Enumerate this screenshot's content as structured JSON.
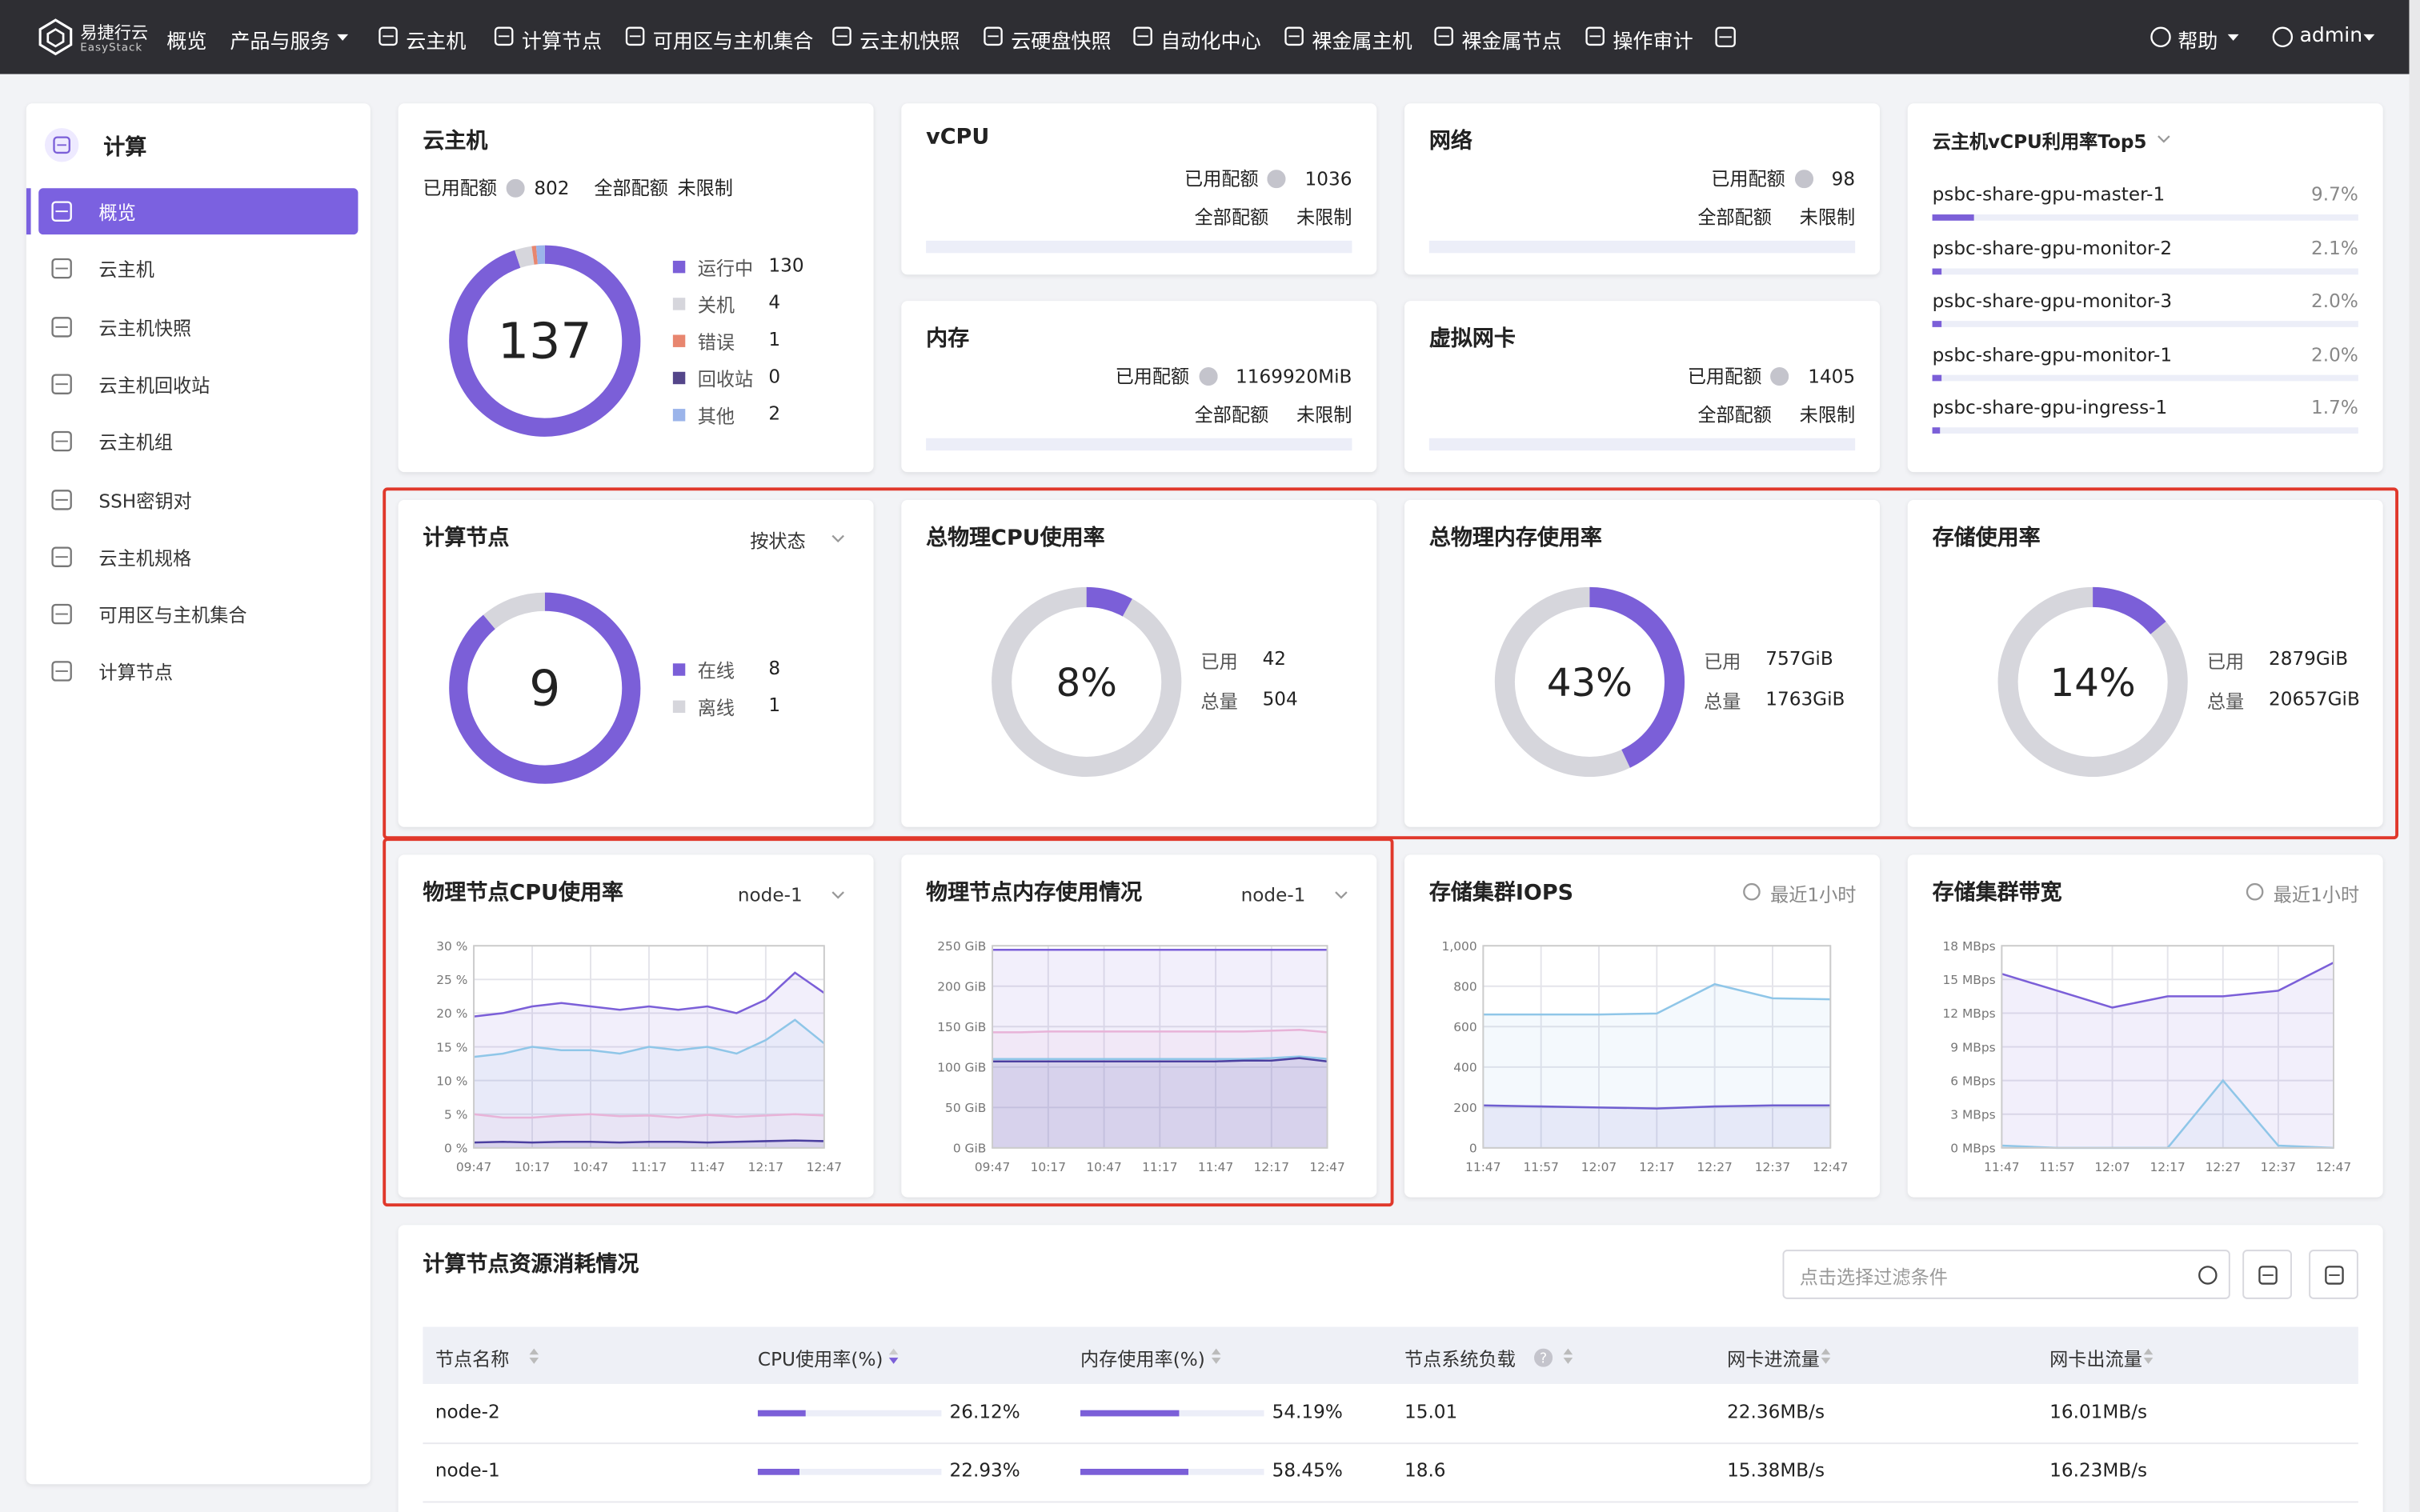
{
  "nav": {
    "brand": "易捷行云",
    "brand_sub": "EasyStack",
    "items": [
      "概览",
      "产品与服务",
      "云主机",
      "计算节点",
      "可用区与主机集合",
      "云主机快照",
      "云硬盘快照",
      "自动化中心",
      "裸金属主机",
      "裸金属节点",
      "操作审计"
    ],
    "help": "帮助",
    "user": "admin"
  },
  "sidebar": {
    "title": "计算",
    "items": [
      "概览",
      "云主机",
      "云主机快照",
      "云主机回收站",
      "云主机组",
      "SSH密钥对",
      "云主机规格",
      "可用区与主机集合",
      "计算节点"
    ]
  },
  "vm": {
    "title": "云主机",
    "used_label": "已用配额",
    "used": 802,
    "total_label": "全部配额",
    "total": "未限制",
    "center": 137,
    "legend": [
      {
        "name": "运行中",
        "value": 130,
        "color": "#7b5fd8"
      },
      {
        "name": "关机",
        "value": 4,
        "color": "#d6d6dc"
      },
      {
        "name": "错误",
        "value": 1,
        "color": "#e8866f"
      },
      {
        "name": "回收站",
        "value": 0,
        "color": "#54468a"
      },
      {
        "name": "其他",
        "value": 2,
        "color": "#9bb4ea"
      }
    ]
  },
  "quotas": [
    {
      "title": "vCPU",
      "used_label": "已用配额",
      "used": "1036",
      "total_label": "全部配额",
      "total": "未限制"
    },
    {
      "title": "网络",
      "used_label": "已用配额",
      "used": "98",
      "total_label": "全部配额",
      "total": "未限制"
    },
    {
      "title": "内存",
      "used_label": "已用配额",
      "used": "1169920MiB",
      "total_label": "全部配额",
      "total": "未限制"
    },
    {
      "title": "虚拟网卡",
      "used_label": "已用配额",
      "used": "1405",
      "total_label": "全部配额",
      "total": "未限制"
    }
  ],
  "top5": {
    "title": "云主机vCPU利用率Top5",
    "items": [
      {
        "name": "psbc-share-gpu-master-1",
        "value": 9.7,
        "label": "9.7%"
      },
      {
        "name": "psbc-share-gpu-monitor-2",
        "value": 2.1,
        "label": "2.1%"
      },
      {
        "name": "psbc-share-gpu-monitor-3",
        "value": 2.0,
        "label": "2.0%"
      },
      {
        "name": "psbc-share-gpu-monitor-1",
        "value": 2.0,
        "label": "2.0%"
      },
      {
        "name": "psbc-share-gpu-ingress-1",
        "value": 1.7,
        "label": "1.7%"
      }
    ]
  },
  "nodes": {
    "title": "计算节点",
    "select": "按状态",
    "center": 9,
    "legend": [
      {
        "name": "在线",
        "value": 8,
        "color": "#7b5fd8"
      },
      {
        "name": "离线",
        "value": 1,
        "color": "#d6d6dc"
      }
    ]
  },
  "usage": [
    {
      "title": "总物理CPU使用率",
      "percent": 8,
      "percent_label": "8%",
      "used_label": "已用",
      "used": "42",
      "total_label": "总量",
      "total": "504"
    },
    {
      "title": "总物理内存使用率",
      "percent": 43,
      "percent_label": "43%",
      "used_label": "已用",
      "used": "757GiB",
      "total_label": "总量",
      "total": "1763GiB"
    },
    {
      "title": "存储使用率",
      "percent": 14,
      "percent_label": "14%",
      "used_label": "已用",
      "used": "2879GiB",
      "total_label": "总量",
      "total": "20657GiB"
    }
  ],
  "charts": [
    {
      "type": "line",
      "title": "物理节点CPU使用率",
      "select": "node-1",
      "categories": [
        "09:47",
        null,
        "10:17",
        null,
        "10:47",
        null,
        "11:17",
        null,
        "11:47",
        null,
        "12:17",
        null,
        "12:47"
      ],
      "ylim": [
        0,
        30
      ],
      "yticks": [
        {
          "value": 0,
          "label": "0 %"
        },
        {
          "value": 5,
          "label": "5 %"
        },
        {
          "value": 10,
          "label": "10 %"
        },
        {
          "value": 15,
          "label": "15 %"
        },
        {
          "value": 20,
          "label": "20 %"
        },
        {
          "value": 25,
          "label": "25 %"
        },
        {
          "value": 30,
          "label": "30 %"
        }
      ],
      "series": [
        {
          "color": "#7b5fd8",
          "values": [
            19.5,
            20,
            21,
            21.5,
            21,
            20.5,
            21,
            20.5,
            21,
            20,
            22,
            26,
            23
          ]
        },
        {
          "color": "#8fc6e8",
          "values": [
            13.5,
            14,
            15,
            14.5,
            14.5,
            14,
            15,
            14.5,
            15,
            14,
            16,
            19,
            15.5
          ]
        },
        {
          "color": "#e8b3d8",
          "values": [
            5,
            4.5,
            4.5,
            4.8,
            5,
            4.7,
            4.8,
            4.5,
            4.9,
            4.6,
            4.8,
            5,
            4.8
          ]
        },
        {
          "color": "#4b3fa0",
          "values": [
            0.8,
            0.9,
            0.8,
            0.9,
            0.9,
            0.8,
            0.9,
            0.9,
            0.8,
            0.9,
            1,
            1.1,
            1
          ]
        }
      ]
    },
    {
      "type": "line",
      "title": "物理节点内存使用情况",
      "select": "node-1",
      "categories": [
        "09:47",
        null,
        "10:17",
        null,
        "10:47",
        null,
        "11:17",
        null,
        "11:47",
        null,
        "12:17",
        null,
        "12:47"
      ],
      "ylim": [
        0,
        250
      ],
      "yticks": [
        {
          "value": 0,
          "label": "0 GiB"
        },
        {
          "value": 50,
          "label": "50 GiB"
        },
        {
          "value": 100,
          "label": "100 GiB"
        },
        {
          "value": 150,
          "label": "150 GiB"
        },
        {
          "value": 200,
          "label": "200 GiB"
        },
        {
          "value": 250,
          "label": "250 GiB"
        }
      ],
      "series": [
        {
          "color": "#7b5fd8",
          "values": [
            245,
            245,
            245,
            245,
            245,
            245,
            245,
            245,
            245,
            245,
            245,
            245,
            245
          ]
        },
        {
          "color": "#e8b3d8",
          "values": [
            143,
            143,
            144,
            144,
            144,
            144,
            144,
            144,
            144,
            144,
            145,
            146,
            143
          ]
        },
        {
          "color": "#8fc6e8",
          "values": [
            110,
            110,
            110,
            110,
            110,
            110,
            110,
            110,
            110,
            110,
            111,
            113,
            110
          ]
        },
        {
          "color": "#4b3fa0",
          "values": [
            107,
            107,
            107,
            107,
            107,
            107,
            107,
            107,
            107,
            108,
            108,
            111,
            107
          ]
        }
      ]
    },
    {
      "type": "line",
      "title": "存储集群IOPS",
      "range": "最近1小时",
      "categories": [
        "11:47",
        "11:57",
        "12:07",
        "12:17",
        "12:27",
        "12:37",
        "12:47"
      ],
      "ylim": [
        0,
        1000
      ],
      "yticks": [
        0,
        200,
        400,
        600,
        800,
        {
          "value": 1000,
          "label": "1,000"
        }
      ],
      "series": [
        {
          "color": "#8fc6e8",
          "values": [
            660,
            660,
            660,
            665,
            810,
            740,
            735
          ]
        },
        {
          "color": "#6f5fd0",
          "values": [
            210,
            205,
            200,
            195,
            205,
            210,
            210
          ]
        }
      ]
    },
    {
      "type": "line",
      "title": "存储集群带宽",
      "range": "最近1小时",
      "categories": [
        "11:47",
        "11:57",
        "12:07",
        "12:17",
        "12:27",
        "12:37",
        "12:47"
      ],
      "ylim": [
        0,
        18
      ],
      "yticks": [
        {
          "value": 0,
          "label": "0 MBps"
        },
        {
          "value": 3,
          "label": "3 MBps"
        },
        {
          "value": 6,
          "label": "6 MBps"
        },
        {
          "value": 9,
          "label": "9 MBps"
        },
        {
          "value": 12,
          "label": "12 MBps"
        },
        {
          "value": 15,
          "label": "15 MBps"
        },
        {
          "value": 18,
          "label": "18 MBps"
        }
      ],
      "series": [
        {
          "color": "#7b5fd8",
          "values": [
            15.5,
            14,
            12.5,
            13.5,
            13.5,
            14,
            16.5
          ]
        },
        {
          "color": "#8fc6e8",
          "values": [
            0.2,
            0,
            0,
            0,
            6,
            0.2,
            0
          ]
        }
      ]
    }
  ],
  "table": {
    "title": "计算节点资源消耗情况",
    "filter_placeholder": "点击选择过滤条件",
    "columns": [
      "节点名称",
      "CPU使用率(%)",
      "内存使用率(%)",
      "节点系统负载",
      "网卡进流量",
      "网卡出流量"
    ],
    "rows": [
      {
        "name": "node-2",
        "cpu": 26.12,
        "cpu_label": "26.12%",
        "mem": 54.19,
        "mem_label": "54.19%",
        "load": "15.01",
        "rx": "22.36MB/s",
        "tx": "16.01MB/s"
      },
      {
        "name": "node-1",
        "cpu": 22.93,
        "cpu_label": "22.93%",
        "mem": 58.45,
        "mem_label": "58.45%",
        "load": "18.6",
        "rx": "15.38MB/s",
        "tx": "16.23MB/s"
      }
    ]
  }
}
